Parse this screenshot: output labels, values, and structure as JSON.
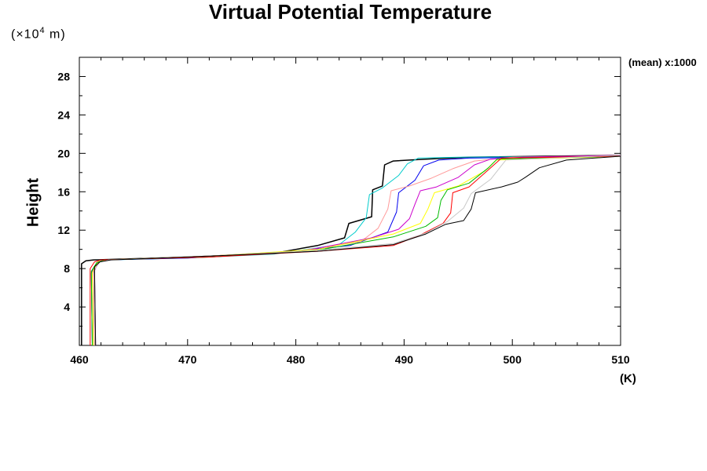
{
  "chart_data": {
    "type": "line",
    "title": "Virtual Potential Temperature",
    "xlabel": "(K)",
    "ylabel": "Height",
    "y_unit_prefix": "(×10",
    "y_unit_exp": "4",
    "y_unit_suffix": " m)",
    "annotation": "(mean) x:1000",
    "xlim": [
      460,
      510
    ],
    "ylim": [
      0,
      30
    ],
    "x_ticks": [
      460,
      470,
      480,
      490,
      500,
      510
    ],
    "y_ticks": [
      4,
      8,
      12,
      16,
      20,
      24,
      28
    ],
    "grid": false,
    "legend": "none",
    "series": [
      {
        "color": "#000000",
        "points": [
          [
            460.2,
            0
          ],
          [
            460.2,
            8.5
          ],
          [
            460.6,
            8.8
          ],
          [
            461.3,
            8.9
          ],
          [
            470,
            9.2
          ],
          [
            478,
            9.6
          ],
          [
            482,
            10.4
          ],
          [
            484.5,
            11.2
          ],
          [
            484.9,
            12.7
          ],
          [
            487,
            13.4
          ],
          [
            487.1,
            16.2
          ],
          [
            488,
            16.6
          ],
          [
            488.2,
            18.8
          ],
          [
            489,
            19.2
          ],
          [
            492,
            19.4
          ],
          [
            496,
            19.6
          ],
          [
            510,
            19.8
          ]
        ]
      },
      {
        "color": "#00cccc",
        "points": [
          [
            461.4,
            0
          ],
          [
            461.3,
            7.5
          ],
          [
            461.7,
            8.7
          ],
          [
            462.6,
            8.9
          ],
          [
            470,
            9.1
          ],
          [
            478,
            9.5
          ],
          [
            484,
            10.5
          ],
          [
            485.5,
            11.8
          ],
          [
            486.5,
            13.3
          ],
          [
            486.8,
            15.7
          ],
          [
            488,
            16.4
          ],
          [
            489.5,
            17.7
          ],
          [
            490.3,
            18.9
          ],
          [
            491.3,
            19.5
          ],
          [
            495,
            19.6
          ],
          [
            510,
            19.7
          ]
        ]
      },
      {
        "color": "#0000ee",
        "points": [
          [
            461.2,
            0
          ],
          [
            461.1,
            7.5
          ],
          [
            461.6,
            8.6
          ],
          [
            462.2,
            8.9
          ],
          [
            470,
            9.1
          ],
          [
            478,
            9.6
          ],
          [
            485,
            10.4
          ],
          [
            488.5,
            11.8
          ],
          [
            489.3,
            13.9
          ],
          [
            489.5,
            15.9
          ],
          [
            491,
            17.2
          ],
          [
            491.8,
            18.7
          ],
          [
            493.2,
            19.3
          ],
          [
            496,
            19.5
          ],
          [
            510,
            19.7
          ]
        ]
      },
      {
        "color": "#ff9999",
        "points": [
          [
            461.4,
            0
          ],
          [
            461.3,
            7.7
          ],
          [
            461.8,
            8.7
          ],
          [
            462.5,
            8.9
          ],
          [
            472,
            9.3
          ],
          [
            480,
            9.8
          ],
          [
            486,
            10.8
          ],
          [
            487.6,
            12.2
          ],
          [
            488.5,
            14.2
          ],
          [
            488.8,
            16.1
          ],
          [
            490.5,
            16.6
          ],
          [
            492.5,
            17.4
          ],
          [
            494.5,
            18.4
          ],
          [
            496.5,
            19.2
          ],
          [
            500,
            19.6
          ],
          [
            510,
            19.8
          ]
        ]
      },
      {
        "color": "#cc00cc",
        "points": [
          [
            461.5,
            0
          ],
          [
            461.4,
            7.8
          ],
          [
            461.8,
            8.7
          ],
          [
            462.8,
            8.9
          ],
          [
            472,
            9.3
          ],
          [
            481,
            9.9
          ],
          [
            487,
            11.2
          ],
          [
            489.5,
            12.1
          ],
          [
            490.5,
            13.2
          ],
          [
            491,
            14.7
          ],
          [
            491.5,
            16.1
          ],
          [
            493,
            16.5
          ],
          [
            495,
            17.5
          ],
          [
            496.5,
            18.8
          ],
          [
            498,
            19.4
          ],
          [
            501,
            19.6
          ],
          [
            510,
            19.8
          ]
        ]
      },
      {
        "color": "#ffff00",
        "points": [
          [
            461.3,
            0
          ],
          [
            461.2,
            7.6
          ],
          [
            461.7,
            8.7
          ],
          [
            462.5,
            8.9
          ],
          [
            472,
            9.3
          ],
          [
            482,
            10.0
          ],
          [
            489,
            11.6
          ],
          [
            491.5,
            12.7
          ],
          [
            492.2,
            14.2
          ],
          [
            492.8,
            15.9
          ],
          [
            495,
            16.6
          ],
          [
            497.5,
            18.2
          ],
          [
            498.5,
            19.3
          ],
          [
            510,
            19.7
          ]
        ]
      },
      {
        "color": "#00bb00",
        "points": [
          [
            461.2,
            0
          ],
          [
            461.1,
            7.7
          ],
          [
            461.6,
            8.6
          ],
          [
            462.3,
            8.9
          ],
          [
            472,
            9.2
          ],
          [
            482,
            9.9
          ],
          [
            489,
            11.3
          ],
          [
            492,
            12.4
          ],
          [
            493.1,
            13.3
          ],
          [
            493.4,
            15.1
          ],
          [
            494,
            16.2
          ],
          [
            496,
            16.9
          ],
          [
            497.8,
            18.5
          ],
          [
            498.6,
            19.4
          ],
          [
            510,
            19.7
          ]
        ]
      },
      {
        "color": "#ff0000",
        "points": [
          [
            461.0,
            0
          ],
          [
            461.0,
            8.0
          ],
          [
            461.4,
            8.7
          ],
          [
            462,
            8.9
          ],
          [
            472,
            9.2
          ],
          [
            482,
            9.8
          ],
          [
            489,
            10.4
          ],
          [
            491.5,
            11.5
          ],
          [
            493.6,
            12.7
          ],
          [
            494.3,
            13.8
          ],
          [
            494.5,
            15.9
          ],
          [
            496,
            16.5
          ],
          [
            498.2,
            18.7
          ],
          [
            499,
            19.5
          ],
          [
            510,
            19.7
          ]
        ]
      },
      {
        "color": "#c8c8c8",
        "points": [
          [
            461.5,
            0
          ],
          [
            461.4,
            7.9
          ],
          [
            461.9,
            8.7
          ],
          [
            462.7,
            8.9
          ],
          [
            472,
            9.3
          ],
          [
            482,
            9.9
          ],
          [
            489,
            10.6
          ],
          [
            492,
            11.7
          ],
          [
            494,
            12.9
          ],
          [
            495.5,
            14.3
          ],
          [
            496.2,
            15.8
          ],
          [
            498,
            17.3
          ],
          [
            499.4,
            19.3
          ],
          [
            510,
            19.8
          ]
        ]
      },
      {
        "color": "#000000",
        "points": [
          [
            461.5,
            0
          ],
          [
            461.4,
            8.2
          ],
          [
            461.9,
            8.7
          ],
          [
            462.9,
            8.9
          ],
          [
            472,
            9.3
          ],
          [
            482,
            9.8
          ],
          [
            489,
            10.5
          ],
          [
            492,
            11.6
          ],
          [
            493.8,
            12.6
          ],
          [
            495.5,
            13.0
          ],
          [
            496.2,
            14.2
          ],
          [
            496.6,
            15.9
          ],
          [
            499,
            16.5
          ],
          [
            500.5,
            17.0
          ],
          [
            501.2,
            17.5
          ],
          [
            502.5,
            18.5
          ],
          [
            505,
            19.3
          ],
          [
            510,
            19.7
          ]
        ]
      }
    ]
  }
}
